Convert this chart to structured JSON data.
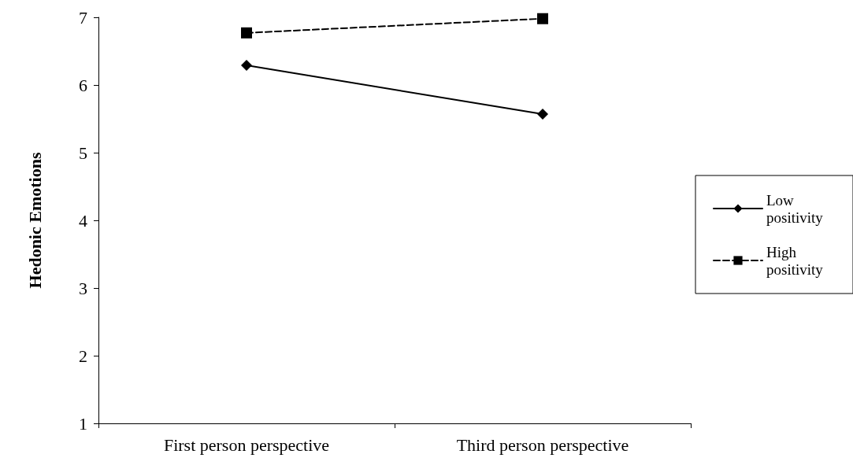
{
  "chart_data": {
    "type": "line",
    "ylabel": "Hedonic Emotions",
    "categories": [
      "First person perspective",
      "Third person perspective"
    ],
    "series": [
      {
        "name": "Low positivity",
        "color": "#000000",
        "values": [
          6.29,
          5.57
        ],
        "marker": "diamond",
        "line_style": "solid"
      },
      {
        "name": "High positivity",
        "color": "#000000",
        "values": [
          6.77,
          6.98
        ],
        "marker": "square",
        "line_style": "dashed"
      }
    ],
    "ylim": [
      1,
      7
    ],
    "yticks": [
      1,
      2,
      3,
      4,
      5,
      6,
      7
    ],
    "grid": false,
    "legend": "right"
  }
}
